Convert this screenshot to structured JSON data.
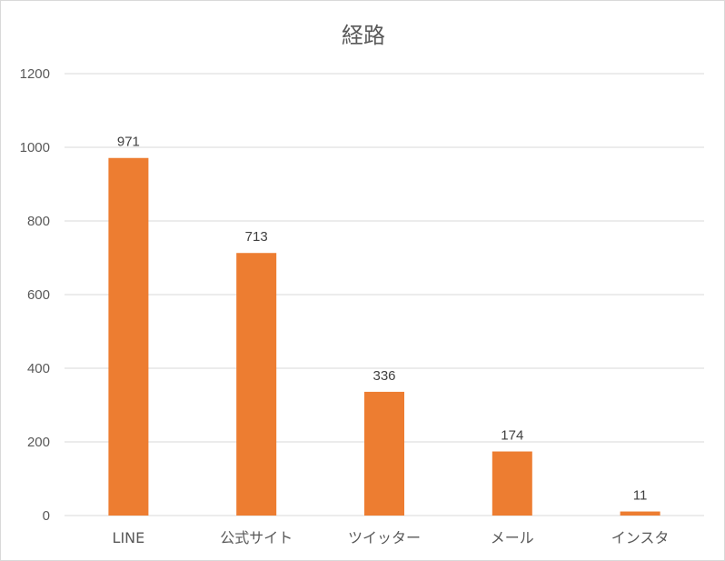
{
  "chart_data": {
    "type": "bar",
    "title": "経路",
    "xlabel": "",
    "ylabel": "",
    "categories": [
      "LINE",
      "公式サイト",
      "ツイッター",
      "メール",
      "インスタ"
    ],
    "values": [
      971,
      713,
      336,
      174,
      11
    ],
    "data_labels": [
      "971",
      "713",
      "336",
      "174",
      "11"
    ],
    "ylim": [
      0,
      1200
    ],
    "yticks": [
      "0",
      "200",
      "400",
      "600",
      "800",
      "1000",
      "1200"
    ],
    "grid": true,
    "legend": "none",
    "bar_color": "#ED7D31",
    "grid_color": "#D9D9D9"
  }
}
